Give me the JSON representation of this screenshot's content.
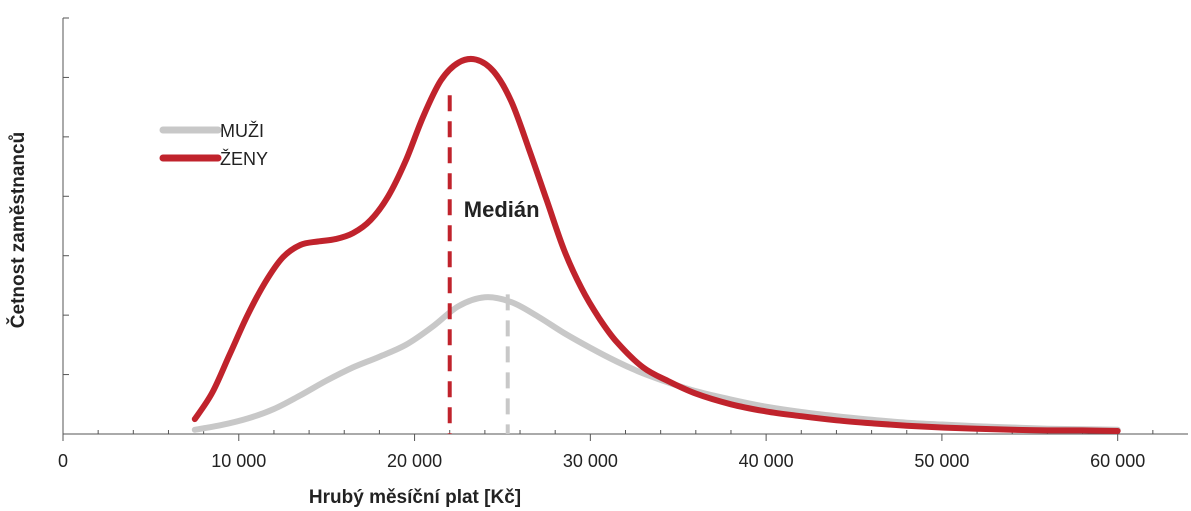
{
  "chart_data": {
    "type": "line",
    "title": "",
    "xlabel": "Hrubý měsíční plat [Kč]",
    "ylabel": "Četnost zaměstnanců",
    "xlim": [
      0,
      64000
    ],
    "ylim": [
      0,
      7
    ],
    "x_ticks": [
      0,
      10000,
      20000,
      30000,
      40000,
      50000,
      60000
    ],
    "x_tick_labels": [
      "0",
      "10 000",
      "20 000",
      "30 000",
      "40 000",
      "50 000",
      "60 000"
    ],
    "y_ticks": [
      0,
      1,
      2,
      3,
      4,
      5,
      6,
      7
    ],
    "y_tick_labels_shown": false,
    "legend_position": "left",
    "series": [
      {
        "name": "MUŽI",
        "color": "#c8c8c8",
        "x": [
          7500,
          9000,
          10500,
          12000,
          13500,
          15000,
          16500,
          18000,
          19500,
          21000,
          22500,
          24000,
          25500,
          27000,
          28500,
          30000,
          31500,
          33000,
          34500,
          36000,
          38000,
          40000,
          42000,
          44000,
          46000,
          48000,
          50000,
          52000,
          54000,
          56000,
          58000,
          60000
        ],
        "y": [
          0.07,
          0.15,
          0.26,
          0.42,
          0.65,
          0.9,
          1.12,
          1.3,
          1.5,
          1.8,
          2.15,
          2.3,
          2.22,
          1.98,
          1.7,
          1.45,
          1.22,
          1.02,
          0.86,
          0.72,
          0.58,
          0.46,
          0.37,
          0.3,
          0.24,
          0.19,
          0.16,
          0.13,
          0.11,
          0.09,
          0.08,
          0.07
        ]
      },
      {
        "name": "ŽENY",
        "color": "#c0232c",
        "x": [
          7500,
          8500,
          9500,
          10500,
          11500,
          12500,
          13500,
          14500,
          15500,
          16500,
          17500,
          18500,
          19500,
          20500,
          21500,
          22500,
          23500,
          24500,
          25500,
          26500,
          27500,
          28500,
          29500,
          30500,
          31500,
          33000,
          34500,
          36000,
          38000,
          40000,
          42000,
          44000,
          46000,
          48000,
          50000,
          52000,
          54000,
          56000,
          58000,
          60000
        ],
        "y": [
          0.25,
          0.7,
          1.35,
          2.0,
          2.55,
          2.97,
          3.18,
          3.24,
          3.28,
          3.38,
          3.6,
          4.0,
          4.6,
          5.35,
          5.95,
          6.25,
          6.3,
          6.1,
          5.6,
          4.8,
          3.95,
          3.1,
          2.45,
          1.95,
          1.55,
          1.12,
          0.88,
          0.68,
          0.5,
          0.38,
          0.3,
          0.23,
          0.18,
          0.14,
          0.11,
          0.09,
          0.07,
          0.06,
          0.06,
          0.05
        ]
      }
    ],
    "medians": [
      {
        "series": "ŽENY",
        "x": 22000,
        "color": "#c0232c",
        "y_top": 5.7
      },
      {
        "series": "MUŽI",
        "x": 25300,
        "color": "#c8c8c8",
        "y_top": 2.35
      }
    ],
    "annotations": [
      {
        "text": "Medián",
        "x": 22800,
        "y": 3.65
      }
    ]
  }
}
